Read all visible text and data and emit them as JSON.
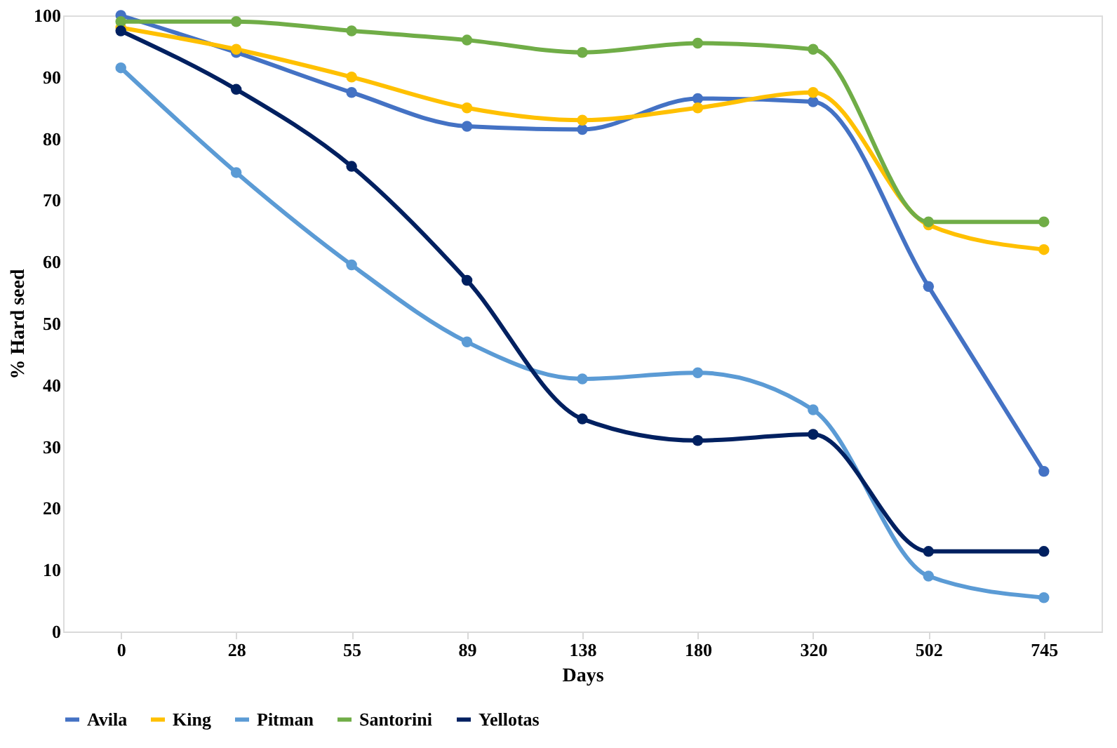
{
  "chart_data": {
    "type": "line",
    "xlabel": "Days",
    "ylabel": "% Hard seed",
    "categories": [
      "0",
      "28",
      "55",
      "89",
      "138",
      "180",
      "320",
      "502",
      "745"
    ],
    "series": [
      {
        "name": "Avila",
        "color": "#4472c4",
        "values": [
          100,
          94,
          87.5,
          82,
          81.5,
          86.5,
          86,
          56,
          26
        ]
      },
      {
        "name": "King",
        "color": "#ffc000",
        "values": [
          98,
          94.5,
          90,
          85,
          83,
          85,
          87.5,
          66,
          62
        ]
      },
      {
        "name": "Pitman",
        "color": "#5b9bd5",
        "values": [
          91.5,
          74.5,
          59.5,
          47,
          41,
          42,
          36,
          9,
          5.5
        ]
      },
      {
        "name": "Santorini",
        "color": "#70ad47",
        "values": [
          99,
          99,
          97.5,
          96,
          94,
          95.5,
          94.5,
          66.5,
          66.5
        ]
      },
      {
        "name": "Yellotas",
        "color": "#002060",
        "values": [
          97.5,
          88,
          75.5,
          57,
          34.5,
          31,
          32,
          13,
          13
        ]
      }
    ],
    "ylim": [
      0,
      100
    ],
    "yticks": [
      0,
      10,
      20,
      30,
      40,
      50,
      60,
      70,
      80,
      90,
      100
    ],
    "grid": false,
    "legend": "bottom",
    "marker": "circle",
    "line_style": "solid"
  }
}
